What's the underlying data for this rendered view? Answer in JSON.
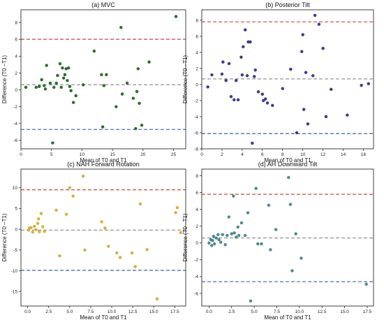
{
  "chart_data": [
    {
      "type": "scatter",
      "title": "(a) MVC",
      "xlabel": "Mean of T0 and T1",
      "ylabel": "Difference (T0 –T1)",
      "xlim": [
        0,
        27
      ],
      "ylim": [
        -7,
        9.5
      ],
      "xticks": [
        0,
        5,
        10,
        15,
        20,
        25
      ],
      "yticks": [
        -6,
        -4,
        -2,
        0,
        2,
        4,
        6,
        8
      ],
      "grid": false,
      "point_color": "#2e6b2e",
      "reference_lines": [
        {
          "role": "upper limit",
          "y": 6.0,
          "color": "#d32f2f"
        },
        {
          "role": "mean",
          "y": 0.6,
          "color": "#8a8a8a"
        },
        {
          "role": "lower limit",
          "y": -4.7,
          "color": "#2b4f9c"
        }
      ],
      "series": [
        {
          "x": [
            0.8,
            2.5,
            3.0,
            3.4,
            3.8,
            4.0,
            4.2,
            4.8,
            5.2,
            5.4,
            5.8,
            6.0,
            6.4,
            6.6,
            6.8,
            7.0,
            7.2,
            7.4,
            7.6,
            7.8,
            8.0,
            8.2,
            8.6,
            9.0,
            10.2,
            12.0,
            13.2,
            13.4,
            13.6,
            14.0,
            15.6,
            16.4,
            16.6,
            17.4,
            18.4,
            18.8,
            19.0,
            19.2,
            19.4,
            19.8,
            21.0,
            25.4
          ],
          "y": [
            0.3,
            0.3,
            0.4,
            1.2,
            0.5,
            0.1,
            2.9,
            0.8,
            -6.3,
            0.3,
            0.8,
            1.7,
            3.1,
            0.3,
            2.6,
            1.4,
            1.8,
            2.5,
            1.1,
            2.6,
            0.4,
            -0.1,
            -1.5,
            -0.7,
            0.6,
            4.6,
            1.8,
            -4.4,
            0.5,
            1.8,
            -2.0,
            7.4,
            -0.5,
            0.8,
            -1.0,
            -4.6,
            -0.2,
            2.5,
            -1.6,
            -4.2,
            3.3,
            8.7
          ]
        }
      ]
    },
    {
      "type": "scatter",
      "title": "(b) Posterior Tilt",
      "xlabel": "Mean of T0 and T1",
      "ylabel": "Difference (T0 –T1)",
      "xlim": [
        0,
        17
      ],
      "ylim": [
        -8,
        9.3
      ],
      "xticks": [
        0,
        2,
        4,
        6,
        8,
        10,
        12,
        14,
        16
      ],
      "yticks": [
        -8,
        -6,
        -4,
        -2,
        0,
        2,
        4,
        6,
        8
      ],
      "grid": false,
      "point_color": "#3d3a8c",
      "reference_lines": [
        {
          "role": "upper limit",
          "y": 7.8,
          "color": "#d32f2f"
        },
        {
          "role": "mean",
          "y": 0.7,
          "color": "#8a8a8a"
        },
        {
          "role": "lower limit",
          "y": -6.1,
          "color": "#2b4f9c"
        }
      ],
      "series": [
        {
          "x": [
            0.6,
            1.0,
            2.0,
            2.1,
            2.4,
            2.7,
            2.9,
            3.2,
            3.4,
            3.6,
            3.9,
            4.0,
            4.1,
            4.3,
            4.5,
            4.6,
            4.8,
            5.0,
            5.2,
            5.3,
            5.6,
            6.0,
            6.1,
            6.3,
            6.5,
            7.0,
            8.0,
            8.8,
            9.4,
            9.9,
            10.0,
            10.1,
            10.3,
            10.5,
            11.0,
            11.2,
            11.6,
            12.0,
            12.3,
            12.8,
            14.4,
            15.8,
            16.5
          ],
          "y": [
            -0.3,
            1.2,
            1.3,
            2.8,
            0.5,
            2.6,
            -1.5,
            -1.9,
            0.5,
            -1.9,
            3.4,
            1.2,
            4.7,
            6.8,
            1.1,
            5.3,
            5.3,
            -7.3,
            1.0,
            1.8,
            -0.9,
            -1.2,
            -2.0,
            -1.8,
            -2.3,
            -2.6,
            -0.5,
            1.9,
            -6.0,
            4.1,
            6.2,
            -3.1,
            1.5,
            -4.9,
            1.1,
            8.6,
            7.5,
            4.5,
            -4.0,
            -0.6,
            -3.8,
            -0.1,
            0.1
          ]
        }
      ]
    },
    {
      "type": "scatter",
      "title": "(c) NAH Forward Rotation",
      "xlabel": "Mean of T0 and T1",
      "ylabel": "Difference (T0 –T1)",
      "xlim": [
        -0.8,
        18.8
      ],
      "ylim": [
        -18.5,
        14.5
      ],
      "xticks": [
        0.0,
        2.5,
        5.0,
        7.5,
        10.0,
        12.5,
        15.0,
        17.5
      ],
      "yticks": [
        -15,
        -10,
        -5,
        0,
        5,
        10
      ],
      "grid": false,
      "point_color": "#d4b13f",
      "reference_lines": [
        {
          "role": "upper limit",
          "y": 9.5,
          "color": "#c0392b"
        },
        {
          "role": "mean",
          "y": -0.2,
          "color": "#8a8a8a"
        },
        {
          "role": "lower limit",
          "y": -9.9,
          "color": "#2b4f9c"
        }
      ],
      "series": [
        {
          "x": [
            0.1,
            0.2,
            0.4,
            0.6,
            0.8,
            1.0,
            1.2,
            1.3,
            1.4,
            1.6,
            1.8,
            2.0,
            3.4,
            3.8,
            4.6,
            5.0,
            5.4,
            6.6,
            6.8,
            8.8,
            9.2,
            9.6,
            10.6,
            11.0,
            12.4,
            12.8,
            13.4,
            14.2,
            15.4,
            17.6,
            17.8,
            18.2
          ],
          "y": [
            -0.2,
            0.3,
            0.4,
            -0.7,
            0.7,
            -0.1,
            1.4,
            2.5,
            -0.6,
            3.8,
            0.6,
            -0.5,
            4.6,
            -6.4,
            3.6,
            10.0,
            8.0,
            12.8,
            -5.0,
            1.8,
            0.3,
            -4.1,
            -5.7,
            -6.8,
            -5.7,
            -9.0,
            6.1,
            -4.9,
            -16.8,
            4.0,
            5.2,
            -0.8
          ]
        }
      ]
    },
    {
      "type": "scatter",
      "title": "(d) AH Downward Tilt",
      "xlabel": "Mean of T0 and T1",
      "ylabel": "Difference (T0 –T1)",
      "xlim": [
        -0.8,
        18.2
      ],
      "ylim": [
        -7.5,
        8.8
      ],
      "xticks": [
        0.0,
        2.5,
        5.0,
        7.5,
        10.0,
        12.5,
        15.0,
        17.5
      ],
      "yticks": [
        -6,
        -4,
        -2,
        0,
        2,
        4,
        6,
        8
      ],
      "grid": false,
      "point_color": "#4f8a8b",
      "reference_lines": [
        {
          "role": "upper limit",
          "y": 5.8,
          "color": "#c0392b"
        },
        {
          "role": "mean",
          "y": 0.6,
          "color": "#8a8a8a"
        },
        {
          "role": "lower limit",
          "y": -4.6,
          "color": "#2b4f9c"
        }
      ],
      "series": [
        {
          "x": [
            0.0,
            0.2,
            0.3,
            0.4,
            0.5,
            0.6,
            0.8,
            1.0,
            1.1,
            1.3,
            1.5,
            1.8,
            2.0,
            2.2,
            2.5,
            2.7,
            2.8,
            3.0,
            3.2,
            3.3,
            3.6,
            4.0,
            4.3,
            4.6,
            5.2,
            5.4,
            5.8,
            6.6,
            6.8,
            7.4,
            8.8,
            9.0,
            9.2,
            9.6,
            10.2,
            17.4
          ],
          "y": [
            0.0,
            0.4,
            -0.3,
            0.3,
            0.8,
            -0.1,
            0.6,
            1.0,
            0.4,
            0.1,
            1.0,
            -0.2,
            0.9,
            3.1,
            1.1,
            5.6,
            1.2,
            0.7,
            1.9,
            0.9,
            2.4,
            0.9,
            3.6,
            -6.9,
            6.5,
            -0.1,
            -0.1,
            4.5,
            -0.8,
            1.6,
            7.8,
            4.6,
            -3.3,
            1.1,
            -1.8,
            -4.9
          ]
        }
      ]
    }
  ]
}
